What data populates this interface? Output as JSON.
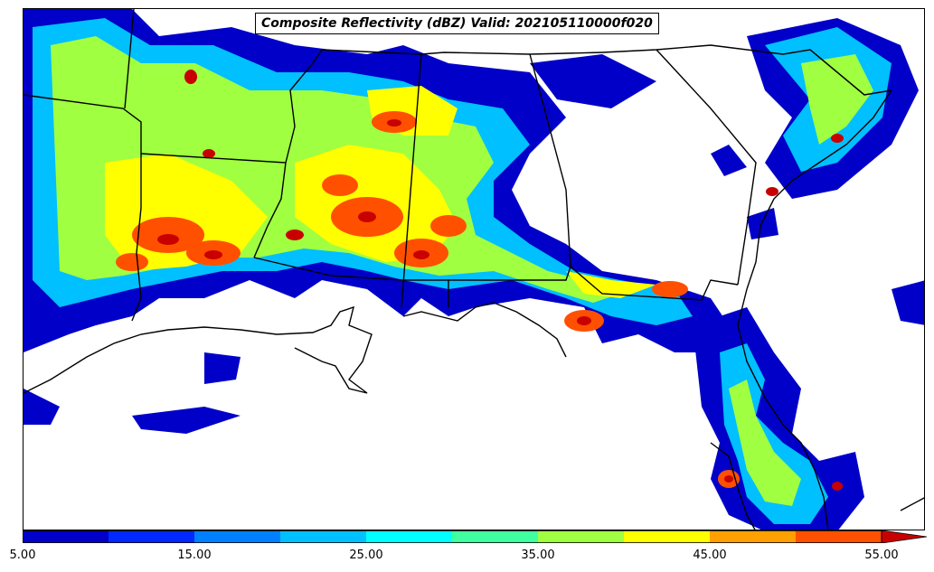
{
  "title": "Composite Reflectivity (dBZ) Valid: 202105110000f020",
  "colorbar": {
    "levels": [
      5,
      10,
      15,
      20,
      25,
      30,
      35,
      40,
      45,
      50,
      55
    ],
    "colors": [
      "#0000c8",
      "#0028ff",
      "#0080ff",
      "#00c0ff",
      "#00ffff",
      "#40ffa0",
      "#a0ff40",
      "#ffff00",
      "#ffa000",
      "#ff5000",
      "#ff0000",
      "#c80000"
    ],
    "extend": "max",
    "tick_labels": [
      "5.00",
      "15.00",
      "25.00",
      "35.00",
      "45.00",
      "55.00"
    ]
  }
}
